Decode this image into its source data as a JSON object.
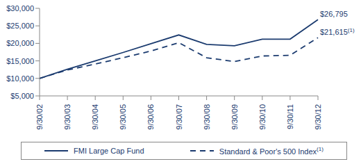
{
  "chart_data": {
    "type": "line",
    "categories": [
      "9/30/02",
      "9/30/03",
      "9/30/04",
      "9/30/05",
      "9/30/06",
      "9/30/07",
      "9/30/08",
      "9/30/09",
      "9/30/10",
      "9/30/11",
      "9/30/12"
    ],
    "series": [
      {
        "name": "FMI Large Cap Fund",
        "color": "#1b3b6f",
        "line_style": "solid",
        "values": [
          10000,
          12600,
          15000,
          17400,
          19900,
          22400,
          19700,
          19300,
          21200,
          21200,
          26795
        ]
      },
      {
        "name": "Standard & Poor's 500 Index",
        "name_superscript": "(1)",
        "color": "#1b3b6f",
        "line_style": "dashed",
        "values": [
          10000,
          12400,
          14100,
          15900,
          17800,
          20200,
          15900,
          14800,
          16400,
          16600,
          21615
        ]
      }
    ],
    "annotations": [
      {
        "series": "FMI Large Cap Fund",
        "text": "$26,795"
      },
      {
        "series": "Standard & Poor's 500 Index",
        "text": "$21,615",
        "superscript": "(1)"
      }
    ],
    "ylim": [
      5000,
      30000
    ],
    "yticks": [
      {
        "value": 5000,
        "label": "$5,000"
      },
      {
        "value": 10000,
        "label": "$10,000"
      },
      {
        "value": 15000,
        "label": "$15,000"
      },
      {
        "value": 20000,
        "label": "$20,000"
      },
      {
        "value": 25000,
        "label": "$25,000"
      },
      {
        "value": 30000,
        "label": "$30,000"
      }
    ],
    "grid": false,
    "legend": "bottom"
  }
}
